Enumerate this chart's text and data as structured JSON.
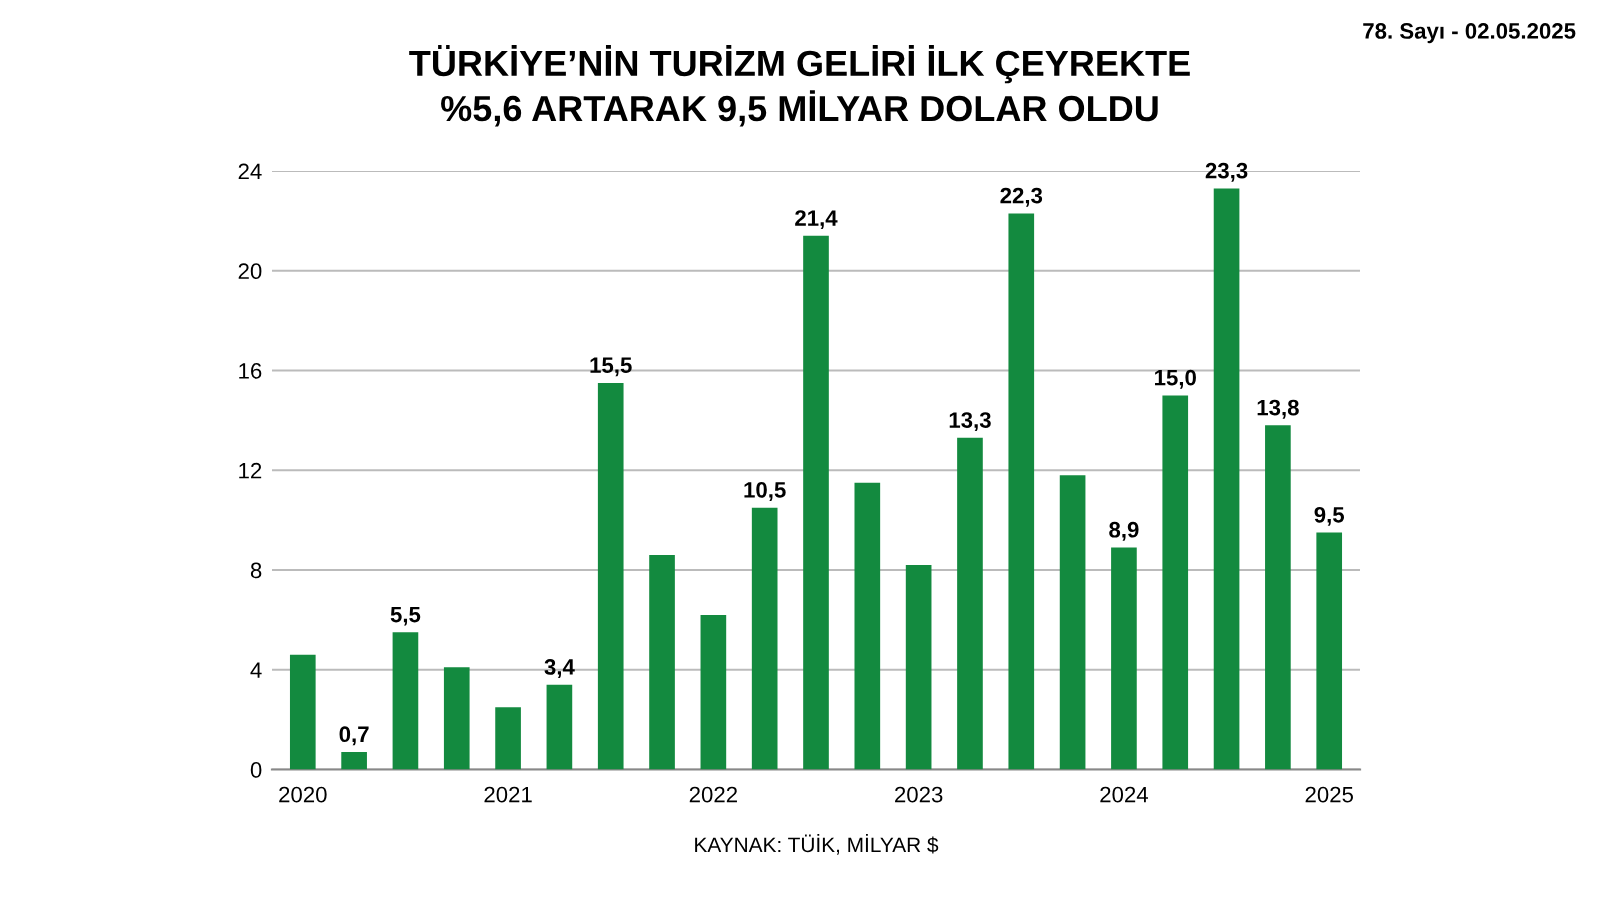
{
  "chart_data": {
    "type": "bar",
    "title": "TÜRKİYE’NİN TURİZM GELİRİ İLK ÇEYREKTE\n%5,6 ARTARAK 9,5 MİLYAR DOLAR OLDU",
    "categories": [
      "2020",
      null,
      null,
      null,
      "2021",
      null,
      null,
      null,
      "2022",
      null,
      null,
      null,
      "2023",
      null,
      null,
      null,
      "2024",
      null,
      null,
      null,
      "2025"
    ],
    "values": [
      4.6,
      0.7,
      5.5,
      4.1,
      2.5,
      3.4,
      15.5,
      8.6,
      6.2,
      10.5,
      21.4,
      11.5,
      8.2,
      13.3,
      22.3,
      11.8,
      8.9,
      15.0,
      23.3,
      13.8,
      9.5
    ],
    "value_labels": [
      null,
      "0,7",
      "5,5",
      null,
      null,
      "3,4",
      "15,5",
      null,
      null,
      "10,5",
      "21,4",
      null,
      null,
      "13,3",
      "22,3",
      null,
      "8,9",
      "15,0",
      "23,3",
      "13,8",
      "9,5"
    ],
    "color": "#138a3f",
    "ylim": [
      0,
      24
    ],
    "yticks": [
      0,
      4,
      8,
      12,
      16,
      20,
      24
    ],
    "grid": "y",
    "annotations": [
      "78. Sayı - 02.05.2025",
      "KAYNAK: TÜİK, MİLYAR $"
    ]
  }
}
